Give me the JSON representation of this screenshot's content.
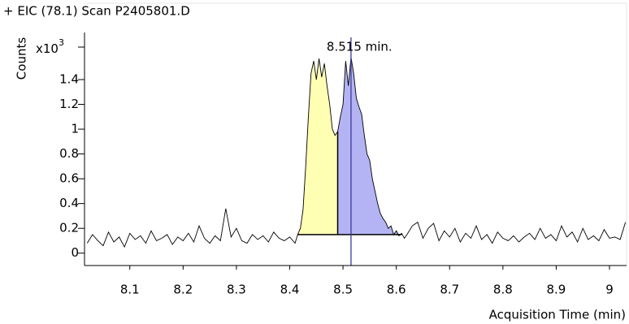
{
  "chart_data": {
    "type": "line",
    "title": "+ EIC (78.1) Scan P2405801.D",
    "ylabel": "Counts",
    "y_multiplier": {
      "base": "x10",
      "exponent": "3"
    },
    "xlabel": "Acquisition Time (min)",
    "annotation": "8.515 min.",
    "marker": 8.515,
    "marker_color": "#3a3a9a",
    "xlim": [
      8.015,
      9.032
    ],
    "ylim": [
      -0.1,
      1.78
    ],
    "xticks": [
      8.1,
      8.2,
      8.3,
      8.4,
      8.5,
      8.6,
      8.7,
      8.8,
      8.9,
      9
    ],
    "yticks": [
      0,
      0.2,
      0.4,
      0.6,
      0.8,
      1,
      1.2,
      1.4
    ],
    "peaks": [
      {
        "start": 8.415,
        "end": 8.49,
        "baseline": 0.15,
        "color": "#ffffb4"
      },
      {
        "start": 8.49,
        "end": 8.61,
        "baseline": 0.15,
        "color": "#b4b4f4"
      }
    ],
    "series": [
      {
        "color": "#000000",
        "x": [
          8.02,
          8.03,
          8.04,
          8.05,
          8.06,
          8.07,
          8.08,
          8.09,
          8.1,
          8.11,
          8.12,
          8.13,
          8.14,
          8.15,
          8.16,
          8.17,
          8.18,
          8.19,
          8.2,
          8.21,
          8.22,
          8.23,
          8.24,
          8.25,
          8.26,
          8.27,
          8.28,
          8.29,
          8.3,
          8.31,
          8.32,
          8.33,
          8.34,
          8.35,
          8.36,
          8.37,
          8.38,
          8.39,
          8.4,
          8.41,
          8.415,
          8.42,
          8.425,
          8.43,
          8.435,
          8.44,
          8.445,
          8.45,
          8.455,
          8.46,
          8.465,
          8.47,
          8.475,
          8.48,
          8.485,
          8.49,
          8.495,
          8.5,
          8.505,
          8.51,
          8.515,
          8.52,
          8.525,
          8.53,
          8.535,
          8.54,
          8.545,
          8.55,
          8.555,
          8.56,
          8.565,
          8.57,
          8.575,
          8.58,
          8.585,
          8.59,
          8.595,
          8.6,
          8.605,
          8.61,
          8.615,
          8.62,
          8.63,
          8.64,
          8.65,
          8.66,
          8.67,
          8.68,
          8.69,
          8.7,
          8.71,
          8.72,
          8.73,
          8.74,
          8.75,
          8.76,
          8.77,
          8.78,
          8.79,
          8.8,
          8.81,
          8.82,
          8.83,
          8.84,
          8.85,
          8.86,
          8.87,
          8.88,
          8.89,
          8.9,
          8.91,
          8.92,
          8.93,
          8.94,
          8.95,
          8.96,
          8.97,
          8.98,
          8.99,
          9,
          9.01,
          9.02,
          9.03
        ],
        "values": [
          0.08,
          0.15,
          0.1,
          0.06,
          0.17,
          0.09,
          0.13,
          0.05,
          0.16,
          0.11,
          0.14,
          0.08,
          0.18,
          0.1,
          0.12,
          0.15,
          0.07,
          0.13,
          0.1,
          0.16,
          0.09,
          0.22,
          0.12,
          0.08,
          0.14,
          0.1,
          0.36,
          0.13,
          0.2,
          0.1,
          0.08,
          0.15,
          0.11,
          0.14,
          0.09,
          0.17,
          0.12,
          0.1,
          0.13,
          0.08,
          0.15,
          0.2,
          0.35,
          0.7,
          1.1,
          1.45,
          1.55,
          1.4,
          1.57,
          1.42,
          1.53,
          1.35,
          1.2,
          1.0,
          0.95,
          0.98,
          1.1,
          1.2,
          1.55,
          1.35,
          1.58,
          1.45,
          1.25,
          1.18,
          1.12,
          0.95,
          0.8,
          0.75,
          0.6,
          0.5,
          0.4,
          0.32,
          0.28,
          0.25,
          0.2,
          0.22,
          0.15,
          0.18,
          0.14,
          0.16,
          0.12,
          0.15,
          0.22,
          0.25,
          0.12,
          0.2,
          0.24,
          0.1,
          0.18,
          0.13,
          0.2,
          0.09,
          0.16,
          0.12,
          0.22,
          0.11,
          0.15,
          0.08,
          0.17,
          0.12,
          0.1,
          0.14,
          0.09,
          0.13,
          0.16,
          0.11,
          0.2,
          0.12,
          0.15,
          0.1,
          0.22,
          0.13,
          0.17,
          0.09,
          0.2,
          0.11,
          0.14,
          0.1,
          0.19,
          0.12,
          0.13,
          0.11,
          0.25
        ]
      }
    ]
  }
}
